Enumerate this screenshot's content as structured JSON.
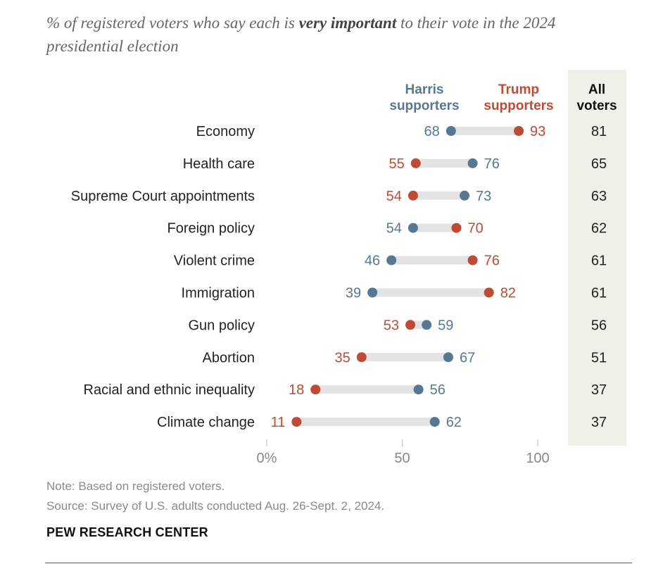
{
  "title": {
    "part1": "% of registered voters who say each is ",
    "bold": "very important",
    "part2": " to their vote in the 2024 presidential election"
  },
  "chart_data": {
    "type": "dot",
    "title": "% of registered voters who say each is very important to their vote in the 2024 presidential election",
    "xlim": [
      0,
      100
    ],
    "ticks": [
      {
        "value": 0,
        "label": "0%"
      },
      {
        "value": 50,
        "label": "50"
      },
      {
        "value": 100,
        "label": "100"
      }
    ],
    "categories": [
      "Economy",
      "Health care",
      "Supreme Court appointments",
      "Foreign policy",
      "Violent crime",
      "Immigration",
      "Gun policy",
      "Abortion",
      "Racial and ethnic inequality",
      "Climate change"
    ],
    "series": [
      {
        "name": "Harris supporters",
        "label_line1": "Harris",
        "label_line2": "supporters",
        "color": "#577893",
        "values": [
          68,
          76,
          73,
          54,
          46,
          39,
          59,
          67,
          56,
          62
        ]
      },
      {
        "name": "Trump supporters",
        "label_line1": "Trump",
        "label_line2": "supporters",
        "color": "#be4b32",
        "values": [
          93,
          55,
          54,
          70,
          76,
          82,
          53,
          35,
          18,
          11
        ]
      }
    ],
    "all_voters": {
      "label_line1": "All",
      "label_line2": "voters",
      "values": [
        81,
        65,
        63,
        62,
        61,
        61,
        56,
        51,
        37,
        37
      ]
    }
  },
  "colors": {
    "connector": "#e3e3e3",
    "panel": "#f0efe8",
    "axis": "#bdbdbd",
    "tick_text": "#888888"
  },
  "footer": {
    "note": "Note: Based on registered voters.",
    "source": "Source: Survey of U.S. adults conducted Aug. 26-Sept. 2, 2024.",
    "brand": "PEW RESEARCH CENTER"
  }
}
